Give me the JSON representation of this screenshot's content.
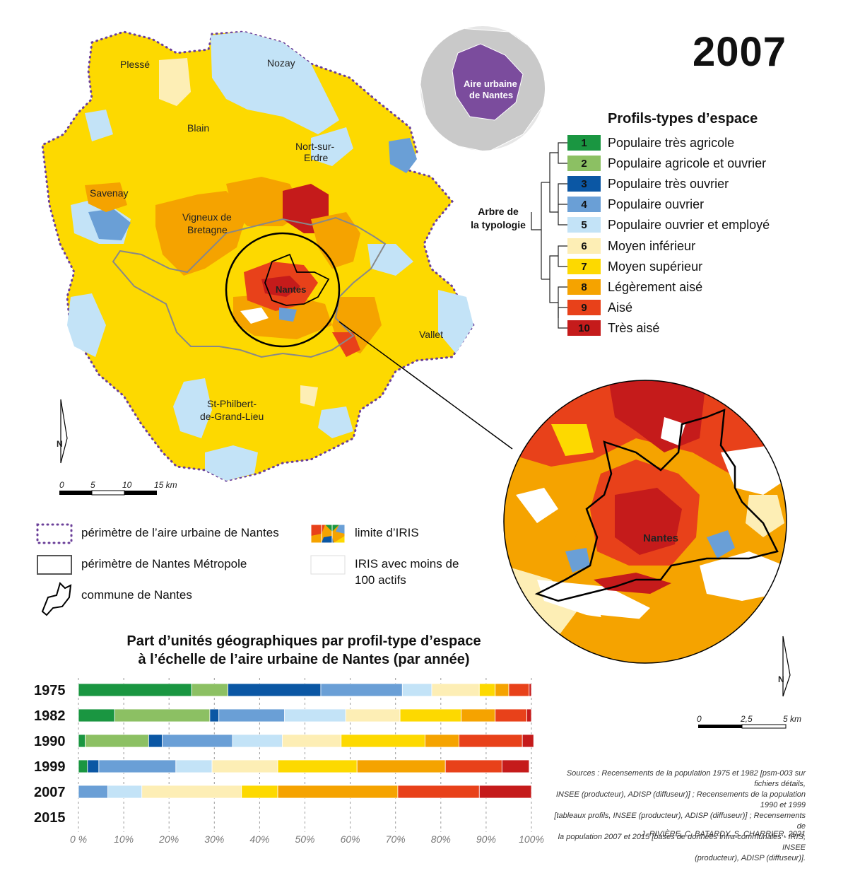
{
  "year_title": "2007",
  "inset": {
    "label_line1": "Aire urbaine",
    "label_line2": "de Nantes"
  },
  "legend": {
    "title": "Profils-types d’espace",
    "tree_label_line1": "Arbre de",
    "tree_label_line2": "la typologie",
    "profiles": [
      {
        "id": "1",
        "label": "Populaire très agricole",
        "color": "#1a9641"
      },
      {
        "id": "2",
        "label": "Populaire agricole et ouvrier",
        "color": "#8cc063"
      },
      {
        "id": "3",
        "label": "Populaire très ouvrier",
        "color": "#0b57a4"
      },
      {
        "id": "4",
        "label": "Populaire ouvrier",
        "color": "#6a9fd6"
      },
      {
        "id": "5",
        "label": "Populaire ouvrier et employé",
        "color": "#c3e3f7"
      },
      {
        "id": "6",
        "label": "Moyen inférieur",
        "color": "#fdeeb5"
      },
      {
        "id": "7",
        "label": "Moyen supérieur",
        "color": "#fdd900"
      },
      {
        "id": "8",
        "label": "Légèrement aisé",
        "color": "#f5a300"
      },
      {
        "id": "9",
        "label": "Aisé",
        "color": "#e8411a"
      },
      {
        "id": "10",
        "label": "Très aisé",
        "color": "#c51b1b"
      }
    ]
  },
  "map": {
    "places": [
      "Plessé",
      "Nozay",
      "Blain",
      "Nort-sur-",
      "Erdre",
      "Savenay",
      "Vigneux de",
      "Bretagne",
      "Nantes",
      "Vallet",
      "St-Philbert-",
      "de-Grand-Lieu"
    ],
    "zoom_label": "Nantes",
    "north": "N",
    "scale_main": [
      "0",
      "5",
      "10",
      "15 km"
    ],
    "scale_zoom": [
      "0",
      "2,5",
      "5 km"
    ]
  },
  "map_legend": {
    "aire_urbaine": "périmètre de l’aire urbaine de Nantes",
    "metropole": "périmètre de Nantes Métropole",
    "commune": "commune de Nantes",
    "iris_limit": "limite d’IRIS",
    "iris_small_line1": "IRIS avec moins de",
    "iris_small_line2": "100 actifs"
  },
  "chart_data": {
    "type": "bar",
    "orientation": "horizontal-stacked-100",
    "title_line1": "Part d’unités géographiques par profil-type d’espace",
    "title_line2": "à l’échelle de l’aire urbaine de Nantes (par année)",
    "categories": [
      "1975",
      "1982",
      "1990",
      "1999",
      "2007",
      "2015"
    ],
    "x_ticks": [
      "0 %",
      "10%",
      "20%",
      "30%",
      "40%",
      "50%",
      "60%",
      "70%",
      "80%",
      "90%",
      "100%"
    ],
    "xlim": [
      0,
      100
    ],
    "series": [
      {
        "name": "1",
        "values": [
          25,
          8,
          1.5,
          2,
          0,
          0
        ]
      },
      {
        "name": "2",
        "values": [
          8,
          21,
          14,
          0,
          0,
          0
        ]
      },
      {
        "name": "3",
        "values": [
          20.5,
          2,
          3,
          2.5,
          0,
          0
        ]
      },
      {
        "name": "4",
        "values": [
          18,
          14.5,
          15.5,
          17,
          6.5,
          0
        ]
      },
      {
        "name": "5",
        "values": [
          6.5,
          13.5,
          11,
          8,
          7.5,
          0
        ]
      },
      {
        "name": "6",
        "values": [
          10.5,
          12,
          13,
          14.5,
          22,
          0
        ]
      },
      {
        "name": "7",
        "values": [
          3.5,
          13.5,
          18.5,
          17.5,
          8,
          0
        ]
      },
      {
        "name": "8",
        "values": [
          3,
          7.5,
          7.5,
          19.5,
          26.5,
          0
        ]
      },
      {
        "name": "9",
        "values": [
          4.5,
          7,
          14,
          12.5,
          18,
          0
        ]
      },
      {
        "name": "10",
        "values": [
          0.5,
          1,
          2.5,
          6,
          11.5,
          0
        ]
      }
    ]
  },
  "sources": {
    "lines": [
      "Sources : Recensements de la population 1975 et 1982 [psm-003 sur fichiers détails,",
      "INSEE (producteur), ADISP (diffuseur)] ; Recensements de la population 1990 et 1999",
      "[tableaux profils, INSEE (producteur), ADISP (diffuseur)] ; Recensements de",
      "la population 2007 et 2015 [bases de données infra-communales - IRIS, INSEE",
      "(producteur), ADISP (diffuseur)]."
    ],
    "credits": "J. RIVIÈRE, C. BATARDY, S. CHARRIER, 2021"
  }
}
